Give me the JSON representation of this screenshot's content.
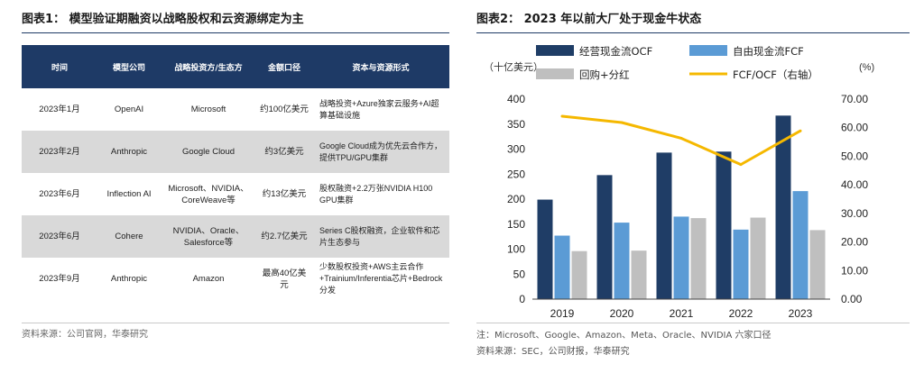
{
  "left": {
    "title": "图表1：  模型验证期融资以战略股权和云资源绑定为主",
    "headers": [
      "时间",
      "模型公司",
      "战略投资方/生态方",
      "金额口径",
      "资本与资源形式"
    ],
    "rows": [
      {
        "time": "2023年1月",
        "company": "OpenAI",
        "investor": "Microsoft",
        "amount": "约100亿美元",
        "form": "战略投资+Azure独家云服务+AI超算基础设施"
      },
      {
        "time": "2023年2月",
        "company": "Anthropic",
        "investor": "Google Cloud",
        "amount": "约3亿美元",
        "form": "Google Cloud成为优先云合作方，提供TPU/GPU集群"
      },
      {
        "time": "2023年6月",
        "company": "Inflection AI",
        "investor": "Microsoft、NVIDIA、CoreWeave等",
        "amount": "约13亿美元",
        "form": "股权融资+2.2万张NVIDIA H100 GPU集群"
      },
      {
        "time": "2023年6月",
        "company": "Cohere",
        "investor": "NVIDIA、Oracle、Salesforce等",
        "amount": "约2.7亿美元",
        "form": "Series C股权融资，企业软件和芯片生态参与"
      },
      {
        "time": "2023年9月",
        "company": "Anthropic",
        "investor": "Amazon",
        "amount": "最高40亿美元",
        "form": "少数股权投资+AWS主云合作+Trainium/Inferentia芯片+Bedrock分发"
      }
    ],
    "source": "资料来源：公司官网，华泰研究"
  },
  "right": {
    "title": "图表2：  2023 年以前大厂处于现金牛状态",
    "note1": "注：Microsoft、Google、Amazon、Meta、Oracle、NVIDIA 六家口径",
    "note2": "资料来源：SEC，公司财报，华泰研究"
  },
  "chart_data": {
    "type": "bar",
    "categories": [
      "2019",
      "2020",
      "2021",
      "2022",
      "2023"
    ],
    "series": [
      {
        "name": "经营现金流OCF",
        "kind": "bar",
        "axis": "left",
        "color": "#1f3d66",
        "values": [
          199,
          248,
          293,
          295,
          367
        ]
      },
      {
        "name": "自由现金流FCF",
        "kind": "bar",
        "axis": "left",
        "color": "#5b9bd5",
        "values": [
          127,
          153,
          165,
          139,
          216
        ]
      },
      {
        "name": "回购+分红",
        "kind": "bar",
        "axis": "left",
        "color": "#bfbfbf",
        "values": [
          96,
          97,
          162,
          163,
          138
        ]
      },
      {
        "name": "FCF/OCF（右轴）",
        "kind": "line",
        "axis": "right",
        "color": "#f5b800",
        "values": [
          64.0,
          61.8,
          56.3,
          47.1,
          58.9
        ]
      }
    ],
    "ylabel_left": "（十亿美元）",
    "ylabel_right": "(%)",
    "ylim_left": [
      0,
      400
    ],
    "yticks_left": [
      "0",
      "50",
      "100",
      "150",
      "200",
      "250",
      "300",
      "350",
      "400"
    ],
    "ylim_right": [
      0,
      70
    ],
    "yticks_right": [
      "0.00",
      "10.00",
      "20.00",
      "30.00",
      "40.00",
      "50.00",
      "60.00",
      "70.00"
    ],
    "grid": false,
    "legend_position": "top"
  }
}
